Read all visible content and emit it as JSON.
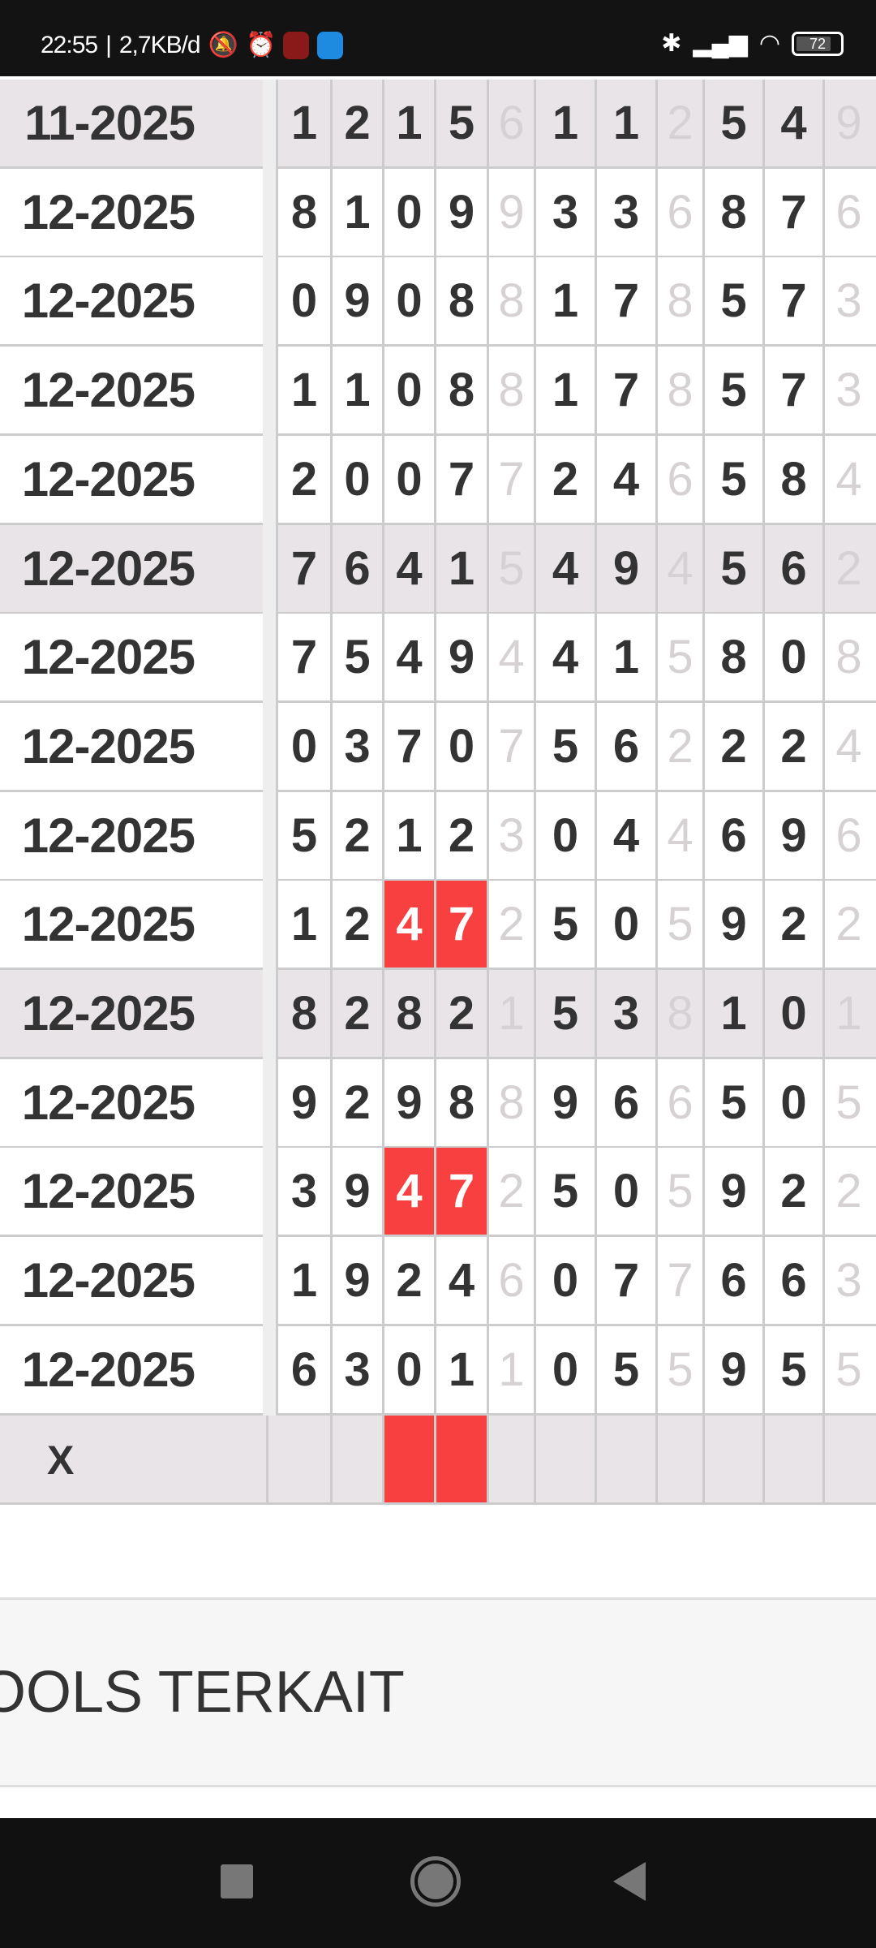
{
  "status_bar": {
    "time": "22:55",
    "net_speed": "2,7KB/d",
    "battery": "72",
    "icons": [
      "vibrate-off-icon",
      "alarm-icon",
      "game-app-icon",
      "mi-app-icon",
      "bluetooth-icon",
      "signal-icon",
      "wifi-icon",
      "battery-icon"
    ]
  },
  "colors": {
    "highlight": "#f84040",
    "alt_row": "#e8e4e8"
  },
  "table": {
    "rows": [
      {
        "date": "11-2025",
        "digits": [
          "1",
          "2",
          "1",
          "5",
          "6",
          "1",
          "1",
          "2",
          "5",
          "4",
          "9"
        ],
        "alt": true
      },
      {
        "date": "12-2025",
        "digits": [
          "8",
          "1",
          "0",
          "9",
          "9",
          "3",
          "3",
          "6",
          "8",
          "7",
          "6"
        ]
      },
      {
        "date": "12-2025",
        "digits": [
          "0",
          "9",
          "0",
          "8",
          "8",
          "1",
          "7",
          "8",
          "5",
          "7",
          "3"
        ]
      },
      {
        "date": "12-2025",
        "digits": [
          "1",
          "1",
          "0",
          "8",
          "8",
          "1",
          "7",
          "8",
          "5",
          "7",
          "3"
        ]
      },
      {
        "date": "12-2025",
        "digits": [
          "2",
          "0",
          "0",
          "7",
          "7",
          "2",
          "4",
          "6",
          "5",
          "8",
          "4"
        ]
      },
      {
        "date": "12-2025",
        "digits": [
          "7",
          "6",
          "4",
          "1",
          "5",
          "4",
          "9",
          "4",
          "5",
          "6",
          "2"
        ],
        "alt": true
      },
      {
        "date": "12-2025",
        "digits": [
          "7",
          "5",
          "4",
          "9",
          "4",
          "4",
          "1",
          "5",
          "8",
          "0",
          "8"
        ]
      },
      {
        "date": "12-2025",
        "digits": [
          "0",
          "3",
          "7",
          "0",
          "7",
          "5",
          "6",
          "2",
          "2",
          "2",
          "4"
        ]
      },
      {
        "date": "12-2025",
        "digits": [
          "5",
          "2",
          "1",
          "2",
          "3",
          "0",
          "4",
          "4",
          "6",
          "9",
          "6"
        ]
      },
      {
        "date": "12-2025",
        "digits": [
          "1",
          "2",
          "4",
          "7",
          "2",
          "5",
          "0",
          "5",
          "9",
          "2",
          "2"
        ],
        "highlight": [
          2,
          3
        ]
      },
      {
        "date": "12-2025",
        "digits": [
          "8",
          "2",
          "8",
          "2",
          "1",
          "5",
          "3",
          "8",
          "1",
          "0",
          "1"
        ],
        "alt": true
      },
      {
        "date": "12-2025",
        "digits": [
          "9",
          "2",
          "9",
          "8",
          "8",
          "9",
          "6",
          "6",
          "5",
          "0",
          "5"
        ]
      },
      {
        "date": "12-2025",
        "digits": [
          "3",
          "9",
          "4",
          "7",
          "2",
          "5",
          "0",
          "5",
          "9",
          "2",
          "2"
        ],
        "highlight": [
          2,
          3
        ]
      },
      {
        "date": "12-2025",
        "digits": [
          "1",
          "9",
          "2",
          "4",
          "6",
          "0",
          "7",
          "7",
          "6",
          "6",
          "3"
        ]
      },
      {
        "date": "12-2025",
        "digits": [
          "6",
          "3",
          "0",
          "1",
          "1",
          "0",
          "5",
          "5",
          "9",
          "5",
          "5"
        ]
      }
    ],
    "faded_columns": [
      4,
      7,
      10
    ],
    "footer": {
      "label": "X",
      "highlight": [
        2,
        3
      ]
    }
  },
  "tools_section": {
    "title": "OOLS TERKAIT"
  }
}
